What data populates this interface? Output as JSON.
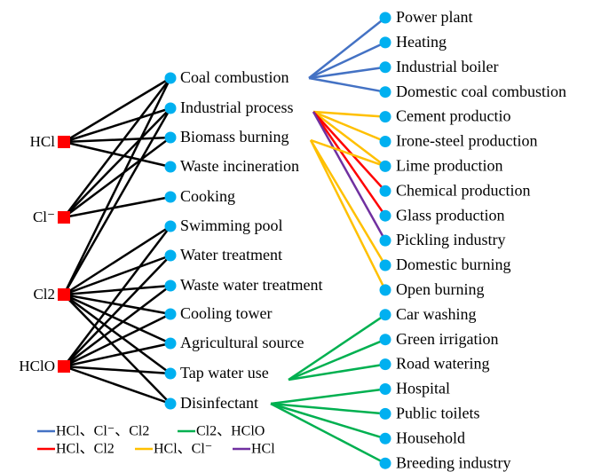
{
  "sources": [
    {
      "label": "HCl"
    },
    {
      "label": "Cl⁻"
    },
    {
      "label": "Cl2"
    },
    {
      "label": "HClO"
    }
  ],
  "categories": [
    {
      "label": "Coal combustion"
    },
    {
      "label": "Industrial process"
    },
    {
      "label": "Biomass burning"
    },
    {
      "label": "Waste incineration"
    },
    {
      "label": "Cooking"
    },
    {
      "label": "Swimming pool"
    },
    {
      "label": "Water treatment"
    },
    {
      "label": "Waste water treatment"
    },
    {
      "label": "Cooling tower"
    },
    {
      "label": "Agricultural source"
    },
    {
      "label": "Tap water use"
    },
    {
      "label": "Disinfectant"
    }
  ],
  "subsources": [
    {
      "label": "Power plant"
    },
    {
      "label": "Heating"
    },
    {
      "label": "Industrial boiler"
    },
    {
      "label": "Domestic coal combustion"
    },
    {
      "label": "Cement productio"
    },
    {
      "label": "Irone-steel production"
    },
    {
      "label": "Lime production"
    },
    {
      "label": "Chemical production"
    },
    {
      "label": "Glass production"
    },
    {
      "label": "Pickling industry"
    },
    {
      "label": "Domestic burning"
    },
    {
      "label": "Open burning"
    },
    {
      "label": "Car washing"
    },
    {
      "label": "Green irrigation"
    },
    {
      "label": "Road watering"
    },
    {
      "label": "Hospital"
    },
    {
      "label": "Public toilets"
    },
    {
      "label": "Household"
    },
    {
      "label": "Breeding industry"
    }
  ],
  "source_links": [
    [
      0,
      0
    ],
    [
      0,
      1
    ],
    [
      0,
      2
    ],
    [
      0,
      3
    ],
    [
      1,
      0
    ],
    [
      1,
      1
    ],
    [
      1,
      2
    ],
    [
      1,
      4
    ],
    [
      2,
      0
    ],
    [
      2,
      1
    ],
    [
      2,
      5
    ],
    [
      2,
      6
    ],
    [
      2,
      7
    ],
    [
      2,
      8
    ],
    [
      2,
      9
    ],
    [
      2,
      10
    ],
    [
      2,
      11
    ],
    [
      3,
      5
    ],
    [
      3,
      6
    ],
    [
      3,
      7
    ],
    [
      3,
      8
    ],
    [
      3,
      9
    ],
    [
      3,
      10
    ],
    [
      3,
      11
    ]
  ],
  "legend": [
    {
      "label": "HCl、Cl⁻、Cl2",
      "color": "#4472c4"
    },
    {
      "label": "Cl2、HClO",
      "color": "#00b050"
    },
    {
      "label": "HCl、Cl2",
      "color": "#ff0000"
    },
    {
      "label": "HCl、Cl⁻",
      "color": "#ffc000"
    },
    {
      "label": "HCl",
      "color": "#7030a0"
    }
  ],
  "category_links": [
    [
      0,
      0,
      0
    ],
    [
      0,
      1,
      0
    ],
    [
      0,
      2,
      0
    ],
    [
      0,
      3,
      0
    ],
    [
      1,
      4,
      3
    ],
    [
      1,
      5,
      3
    ],
    [
      1,
      6,
      3
    ],
    [
      1,
      7,
      2
    ],
    [
      1,
      8,
      2
    ],
    [
      1,
      9,
      4
    ],
    [
      2,
      6,
      3
    ],
    [
      2,
      10,
      3
    ],
    [
      2,
      11,
      3
    ],
    [
      10,
      12,
      1
    ],
    [
      10,
      13,
      1
    ],
    [
      10,
      14,
      1
    ],
    [
      11,
      15,
      1
    ],
    [
      11,
      16,
      1
    ],
    [
      11,
      17,
      1
    ],
    [
      11,
      18,
      1
    ]
  ]
}
